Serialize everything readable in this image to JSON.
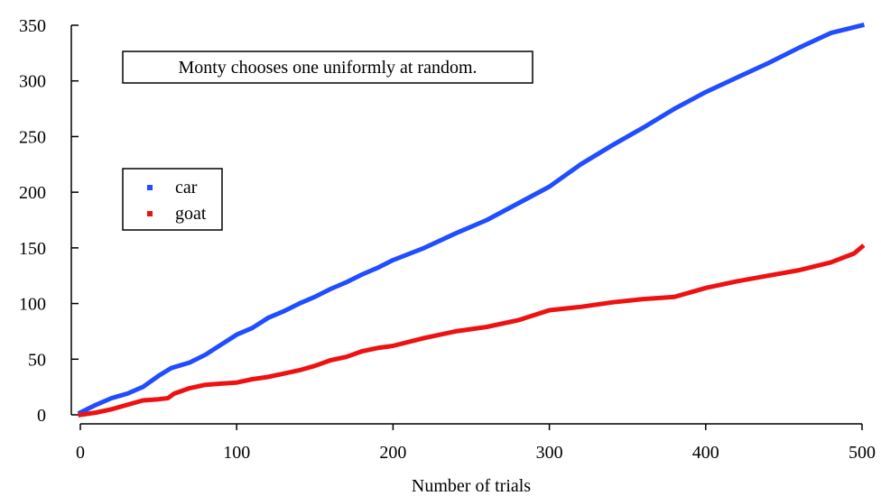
{
  "chart_data": {
    "type": "line",
    "title": "",
    "xlabel": "Number of trials",
    "ylabel": "",
    "xlim": [
      0,
      500
    ],
    "ylim": [
      0,
      350
    ],
    "xticks": [
      0,
      100,
      200,
      300,
      400,
      500
    ],
    "yticks": [
      0,
      50,
      100,
      150,
      200,
      250,
      300,
      350
    ],
    "grid": false,
    "legend_position": "upper-left",
    "annotation": "Monty chooses one uniformly at random.",
    "series": [
      {
        "name": "car",
        "color": "#1f4dff",
        "x": [
          0,
          10,
          20,
          30,
          40,
          50,
          58,
          70,
          80,
          90,
          100,
          110,
          120,
          130,
          140,
          150,
          160,
          170,
          180,
          190,
          200,
          220,
          240,
          260,
          280,
          300,
          320,
          340,
          360,
          380,
          400,
          420,
          440,
          460,
          480,
          500
        ],
        "y": [
          2,
          9,
          15,
          19,
          25,
          35,
          42,
          47,
          54,
          63,
          72,
          78,
          87,
          93,
          100,
          106,
          113,
          119,
          126,
          132,
          139,
          150,
          163,
          175,
          190,
          205,
          225,
          242,
          258,
          275,
          290,
          303,
          316,
          330,
          343,
          350
        ]
      },
      {
        "name": "goat",
        "color": "#ee1111",
        "x": [
          0,
          10,
          20,
          30,
          40,
          50,
          56,
          60,
          70,
          80,
          90,
          100,
          110,
          120,
          130,
          140,
          150,
          160,
          170,
          180,
          190,
          200,
          220,
          240,
          260,
          280,
          300,
          320,
          340,
          360,
          380,
          400,
          420,
          440,
          460,
          480,
          495,
          500
        ],
        "y": [
          0,
          2,
          5,
          9,
          13,
          14,
          15,
          19,
          24,
          27,
          28,
          29,
          32,
          34,
          37,
          40,
          44,
          49,
          52,
          57,
          60,
          62,
          69,
          75,
          79,
          85,
          94,
          97,
          101,
          104,
          106,
          114,
          120,
          125,
          130,
          137,
          145,
          151
        ]
      }
    ]
  }
}
